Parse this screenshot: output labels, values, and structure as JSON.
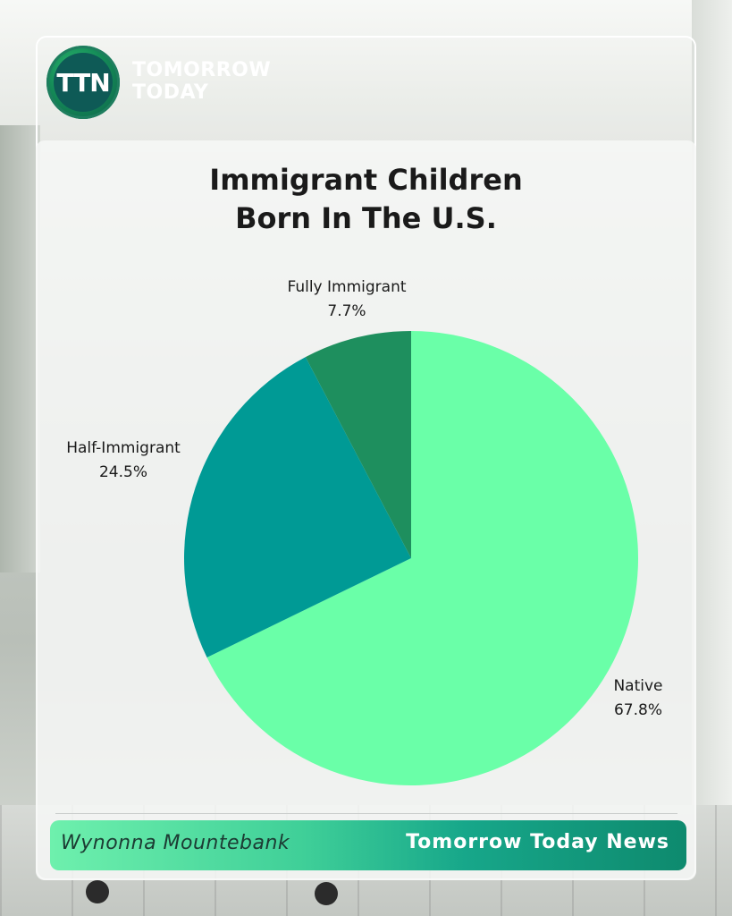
{
  "brand": {
    "logo_mark": "TTN",
    "name_line1": "TOMORROW",
    "name_line2": "TODAY"
  },
  "footer": {
    "author": "Wynonna Mountebank",
    "publisher": "Tomorrow Today News"
  },
  "chart_data": {
    "type": "pie",
    "title_line1": "Immigrant Children",
    "title_line2": "Born In The U.S.",
    "slices": [
      {
        "label": "Native",
        "value": 67.8,
        "display": "67.8%",
        "color": "#6affa8"
      },
      {
        "label": "Half-Immigrant",
        "value": 24.5,
        "display": "24.5%",
        "color": "#009a95"
      },
      {
        "label": "Fully Immigrant",
        "value": 7.7,
        "display": "7.7%",
        "color": "#1e8f5e"
      }
    ],
    "start": "12 o'clock",
    "direction": "clockwise",
    "legend": "none",
    "labels": "outside"
  }
}
